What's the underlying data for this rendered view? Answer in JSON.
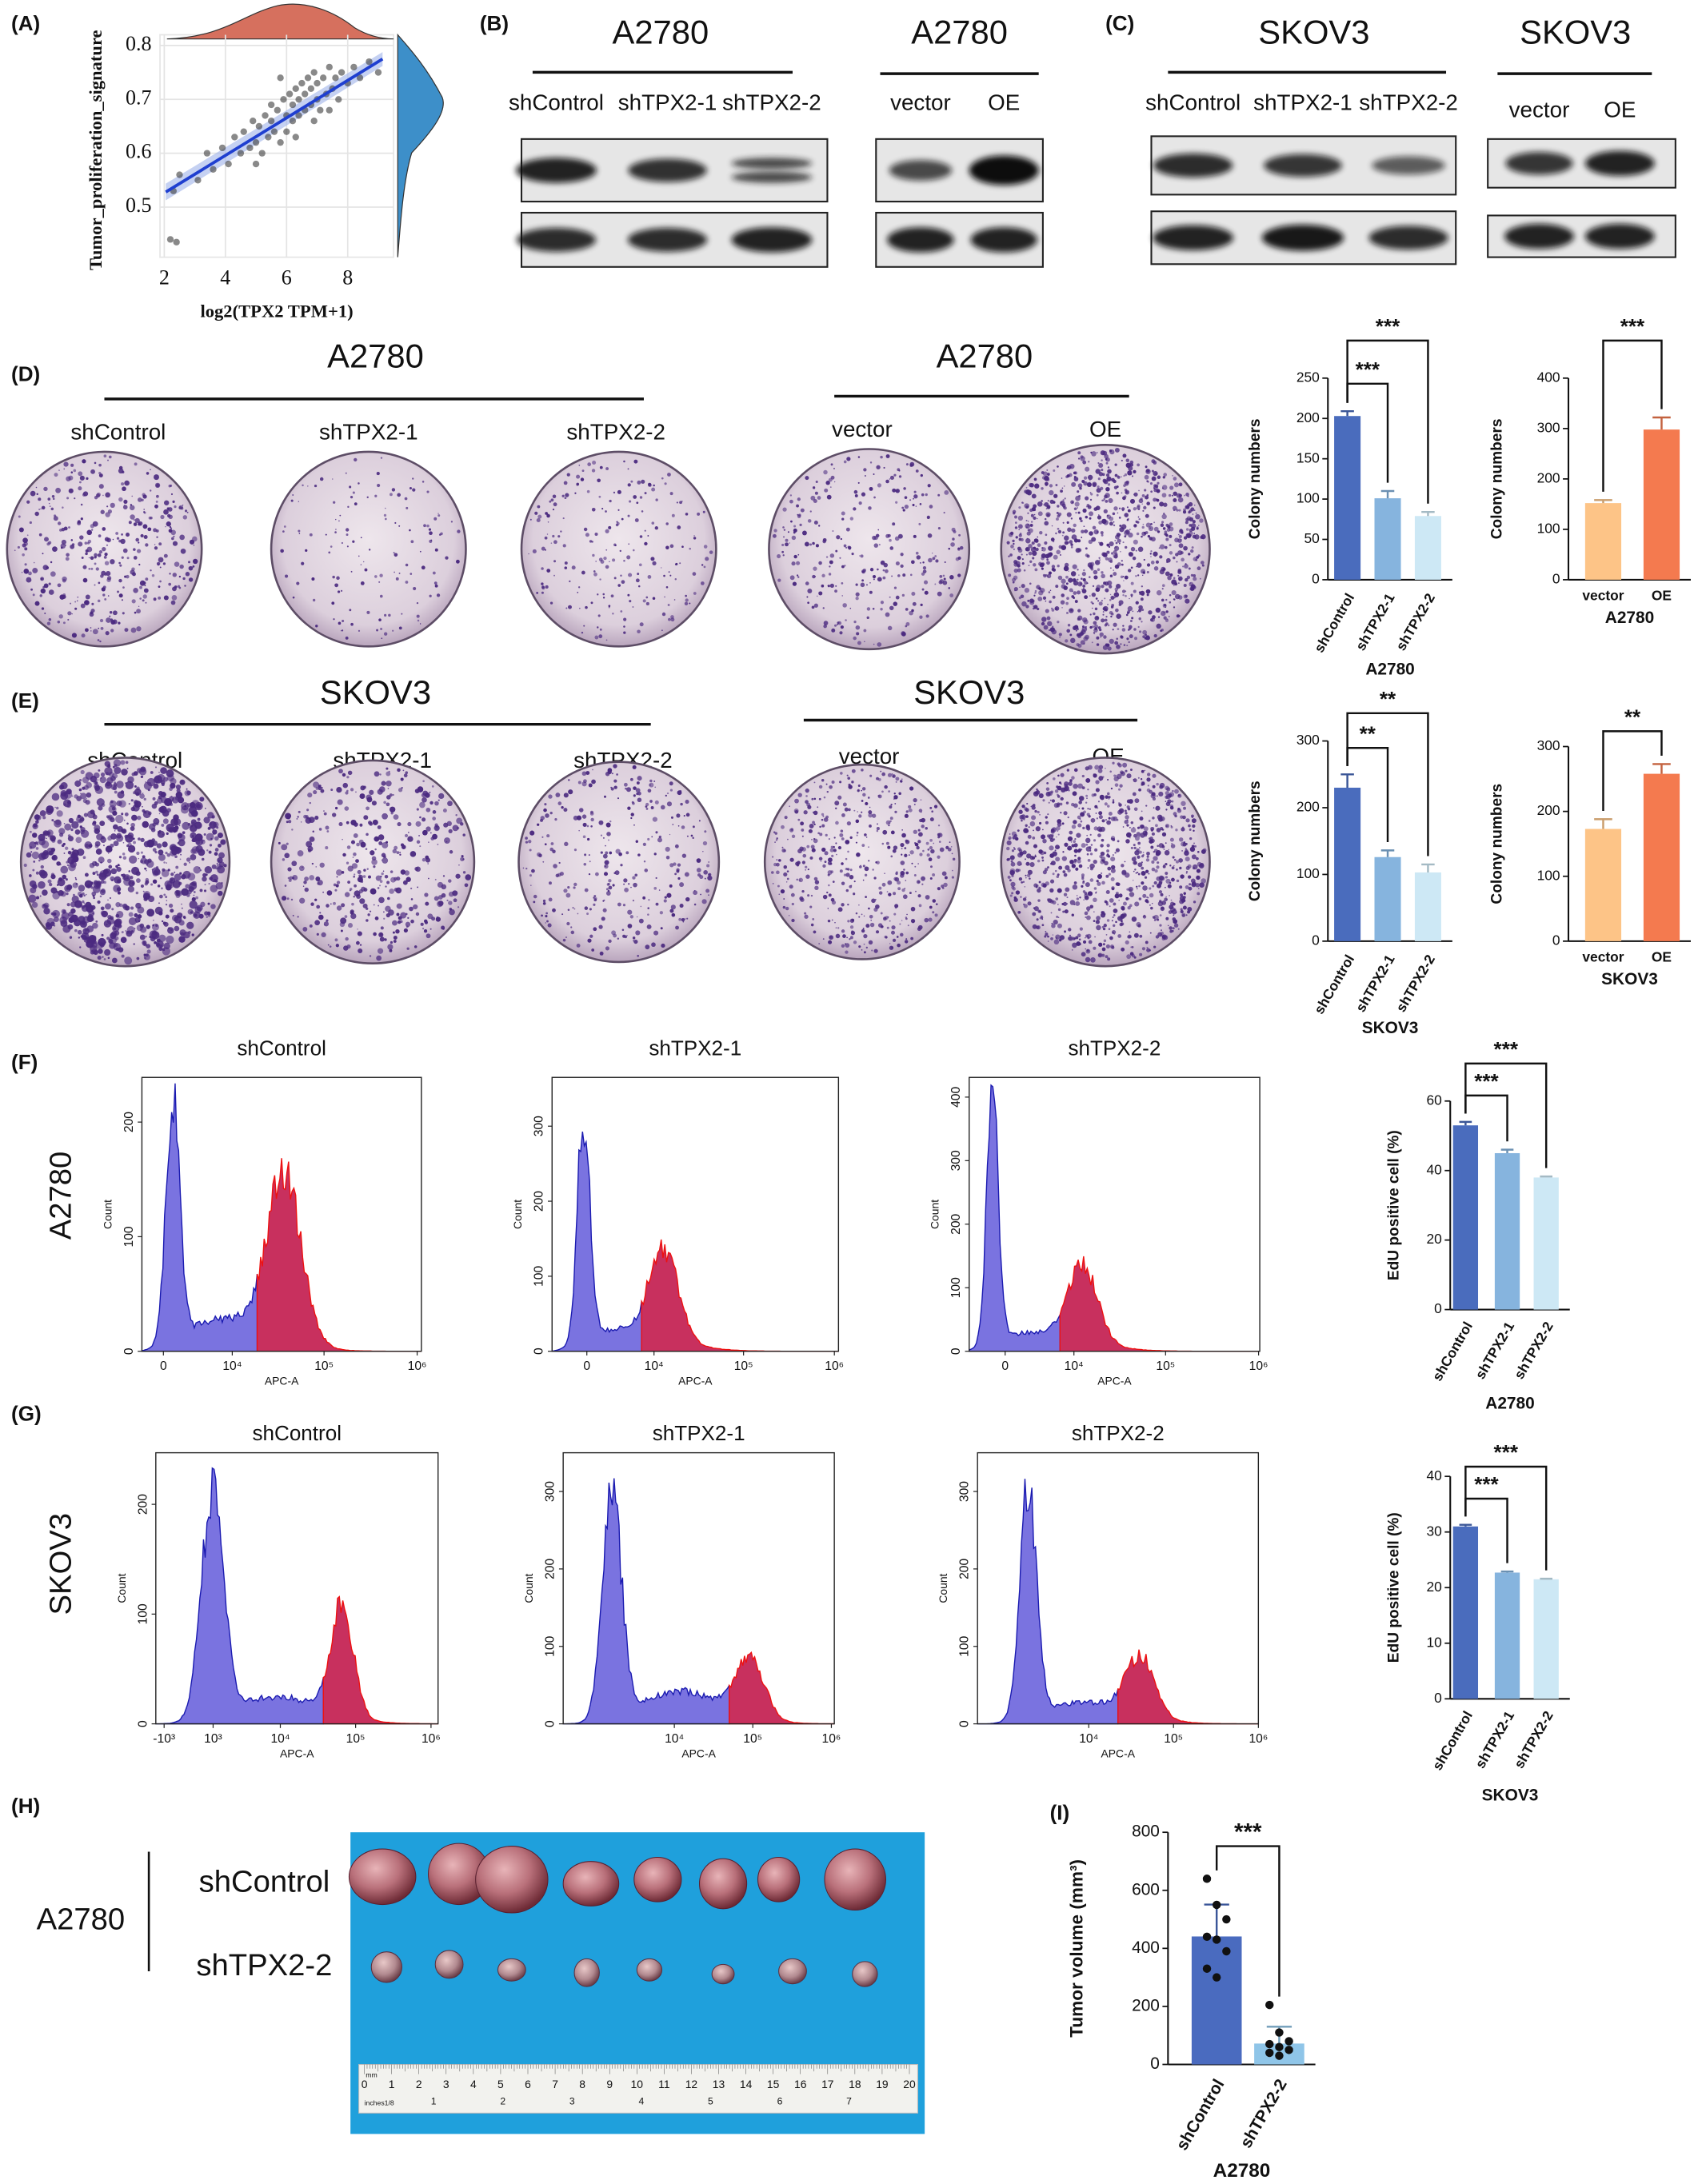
{
  "figure": {
    "labels": [
      "(A)",
      "(B)",
      "(C)",
      "(D)",
      "(E)",
      "(F)",
      "(G)",
      "(H)",
      "(I)"
    ],
    "blot_groups": [
      {
        "title": "A2780",
        "lanes": [
          "shControl",
          "shTPX2-1",
          "shTPX2-2"
        ]
      },
      {
        "title": "A2780",
        "lanes": [
          "vector",
          "OE"
        ]
      },
      {
        "title": "SKOV3",
        "lanes": [
          "shControl",
          "shTPX2-1",
          "shTPX2-2"
        ]
      },
      {
        "title": "SKOV3",
        "lanes": [
          "vector",
          "OE"
        ]
      }
    ],
    "plate_groups": [
      {
        "title": "A2780",
        "lanes": [
          "shControl",
          "shTPX2-1",
          "shTPX2-2"
        ]
      },
      {
        "title": "A2780",
        "lanes": [
          "vector",
          "OE"
        ]
      },
      {
        "title": "SKOV3",
        "lanes": [
          "shControl",
          "shTPX2-1",
          "shTPX2-2"
        ]
      },
      {
        "title": "SKOV3",
        "lanes": [
          "vector",
          "OE"
        ]
      }
    ],
    "flow_rows": [
      "A2780",
      "SKOV3"
    ],
    "xenograft": {
      "cell_line": "A2780",
      "groups": [
        "shControl",
        "shTPX2-2"
      ],
      "ruler": {
        "unit": "mm",
        "cm": [
          0,
          1,
          2,
          3,
          4,
          5,
          6,
          7,
          8,
          9,
          10,
          11,
          12,
          13,
          14,
          15,
          16,
          17,
          18,
          19,
          20
        ],
        "inch_label": "inches1/8",
        "inches": [
          1,
          2,
          3,
          4,
          5,
          6,
          7
        ]
      }
    }
  },
  "chart_data": [
    {
      "type": "scatter",
      "ylabel": "Tumor_proliferation_signature",
      "xlabel": "log2(TPX2 TPM+1)",
      "x": [
        2.3,
        2.5,
        3.1,
        3.4,
        3.6,
        3.9,
        4.1,
        4.3,
        4.5,
        4.6,
        4.8,
        4.9,
        5.0,
        5.1,
        5.2,
        5.3,
        5.4,
        5.5,
        5.5,
        5.6,
        5.7,
        5.8,
        5.9,
        6.0,
        6.0,
        6.1,
        6.2,
        6.2,
        6.3,
        6.4,
        6.4,
        6.5,
        6.6,
        6.6,
        6.7,
        6.8,
        6.8,
        6.9,
        7.0,
        7.0,
        7.1,
        7.2,
        7.3,
        7.4,
        7.5,
        7.6,
        7.7,
        7.8,
        8.0,
        8.2,
        8.4,
        8.7,
        9.0,
        5.0,
        5.8,
        6.3,
        6.9,
        7.4,
        2.2,
        2.4
      ],
      "y": [
        0.53,
        0.56,
        0.55,
        0.6,
        0.57,
        0.61,
        0.58,
        0.63,
        0.6,
        0.64,
        0.61,
        0.66,
        0.62,
        0.65,
        0.6,
        0.67,
        0.63,
        0.66,
        0.69,
        0.64,
        0.68,
        0.62,
        0.7,
        0.67,
        0.64,
        0.71,
        0.66,
        0.69,
        0.72,
        0.67,
        0.7,
        0.73,
        0.68,
        0.71,
        0.74,
        0.69,
        0.72,
        0.75,
        0.7,
        0.73,
        0.68,
        0.74,
        0.71,
        0.76,
        0.72,
        0.74,
        0.7,
        0.75,
        0.73,
        0.76,
        0.74,
        0.77,
        0.75,
        0.58,
        0.74,
        0.63,
        0.66,
        0.68,
        0.44,
        0.435
      ],
      "fit": {
        "x": [
          2.05,
          9.14
        ],
        "y": [
          0.528,
          0.775
        ]
      },
      "xlim": [
        1.86,
        9.5
      ],
      "ylim": [
        0.407,
        0.82
      ],
      "xticks": [
        2,
        4,
        6,
        8
      ],
      "yticks": [
        0.5,
        0.6,
        0.7,
        0.8
      ],
      "grid": true,
      "color": "#3a3a3a",
      "fit_color": "#1f3fd0"
    },
    {
      "type": "bar",
      "categories": [
        "shControl",
        "shTPX2-1",
        "shTPX2-2"
      ],
      "values": [
        203,
        101,
        79
      ],
      "errors": [
        6,
        9,
        5
      ],
      "colors": [
        "#4a6cbd",
        "#86b4de",
        "#cde8f5"
      ],
      "ylim": [
        0,
        250
      ],
      "yticks": [
        0,
        50,
        100,
        150,
        200,
        250
      ],
      "ylabel": "Colony numbers",
      "xlabel": "A2780",
      "annotations": [
        "***",
        "***"
      ]
    },
    {
      "type": "bar",
      "categories": [
        "vector",
        "OE"
      ],
      "values": [
        152,
        298
      ],
      "errors": [
        6,
        24
      ],
      "colors": [
        "#fdc487",
        "#f47a4f"
      ],
      "ylim": [
        0,
        400
      ],
      "yticks": [
        0,
        100,
        200,
        300,
        400
      ],
      "ylabel": "Colony numbers",
      "xlabel": "A2780",
      "annotations": [
        "***"
      ]
    },
    {
      "type": "bar",
      "categories": [
        "shControl",
        "shTPX2-1",
        "shTPX2-2"
      ],
      "values": [
        230,
        126,
        103
      ],
      "errors": [
        20,
        10,
        12
      ],
      "colors": [
        "#4a6cbd",
        "#86b4de",
        "#cde8f5"
      ],
      "ylim": [
        0,
        300
      ],
      "yticks": [
        0,
        100,
        200,
        300
      ],
      "ylabel": "Colony numbers",
      "xlabel": "SKOV3",
      "annotations": [
        "**",
        "**"
      ]
    },
    {
      "type": "bar",
      "categories": [
        "vector",
        "OE"
      ],
      "values": [
        173,
        258
      ],
      "errors": [
        15,
        15
      ],
      "colors": [
        "#fdc487",
        "#f47a4f"
      ],
      "ylim": [
        0,
        300
      ],
      "yticks": [
        0,
        100,
        200,
        300
      ],
      "ylabel": "Colony numbers",
      "xlabel": "SKOV3",
      "annotations": [
        "**"
      ]
    },
    {
      "type": "bar",
      "categories": [
        "shControl",
        "shTPX2-1",
        "shTPX2-2"
      ],
      "values": [
        53,
        45,
        38
      ],
      "errors": [
        1,
        1,
        0.3
      ],
      "colors": [
        "#4a6cbd",
        "#86b4de",
        "#cde8f5"
      ],
      "ylim": [
        0,
        60
      ],
      "yticks": [
        0,
        20,
        40,
        60
      ],
      "ylabel": "EdU positive cell (%)",
      "xlabel": "A2780",
      "annotations": [
        "***",
        "***"
      ]
    },
    {
      "type": "bar",
      "categories": [
        "shControl",
        "shTPX2-1",
        "shTPX2-2"
      ],
      "values": [
        31,
        22.7,
        21.5
      ],
      "errors": [
        0.3,
        0.2,
        0.1
      ],
      "colors": [
        "#4a6cbd",
        "#86b4de",
        "#cde8f5"
      ],
      "ylim": [
        0,
        40
      ],
      "yticks": [
        0,
        10,
        20,
        30,
        40
      ],
      "ylabel": "EdU positive cell (%)",
      "xlabel": "SKOV3",
      "annotations": [
        "***",
        "***"
      ]
    },
    {
      "type": "bar",
      "categories": [
        "shControl",
        "shTPX2-2"
      ],
      "values": [
        441,
        72
      ],
      "errors": [
        110,
        58
      ],
      "points": [
        [
          640,
          550,
          500,
          440,
          430,
          390,
          330,
          300
        ],
        [
          205,
          110,
          80,
          70,
          60,
          50,
          40,
          30
        ]
      ],
      "colors": [
        "#4a6bbf",
        "#8fc5e8"
      ],
      "ylim": [
        0,
        800
      ],
      "yticks": [
        0,
        200,
        400,
        600,
        800
      ],
      "ylabel": "Tumor volume (mm³)",
      "xlabel": "A2780",
      "annotations": [
        "***"
      ]
    },
    {
      "type": "flow",
      "title": "shControl",
      "ylabel": "Count",
      "xlabel": "APC-A",
      "xscale": "asinh",
      "ylim": [
        0,
        239
      ],
      "yticks": [
        0,
        100,
        200
      ],
      "xlim": [
        -2100,
        1110000
      ],
      "xticks": [
        {
          "value": 0,
          "label": "0"
        },
        {
          "value": 10000,
          "label": "10⁴"
        },
        {
          "value": 100000,
          "label": "10⁵"
        },
        {
          "value": 1000000,
          "label": "10⁶"
        }
      ]
    },
    {
      "type": "flow",
      "title": "shTPX2-1",
      "ylabel": "Count",
      "xlabel": "APC-A",
      "xscale": "asinh",
      "ylim": [
        0,
        365
      ],
      "yticks": [
        0,
        100,
        200,
        300
      ],
      "xlim": [
        -3770,
        1110000
      ],
      "xticks": [
        {
          "value": 0,
          "label": "0"
        },
        {
          "value": 10000,
          "label": "10⁴"
        },
        {
          "value": 100000,
          "label": "10⁵"
        },
        {
          "value": 1000000,
          "label": "10⁶"
        }
      ]
    },
    {
      "type": "flow",
      "title": "shTPX2-2",
      "ylabel": "Count",
      "xlabel": "APC-A",
      "xscale": "asinh",
      "ylim": [
        0,
        431
      ],
      "yticks": [
        0,
        100,
        200,
        300,
        400
      ],
      "xlim": [
        -3820,
        1030000
      ],
      "xticks": [
        {
          "value": 0,
          "label": "0"
        },
        {
          "value": 10000,
          "label": "10⁴"
        },
        {
          "value": 100000,
          "label": "10⁵"
        },
        {
          "value": 1000000,
          "label": "10⁶"
        }
      ]
    },
    {
      "type": "flow",
      "title": "shControl",
      "ylabel": "Count",
      "xlabel": "APC-A",
      "xscale": "asinh",
      "ylim": [
        0,
        247
      ],
      "yticks": [
        0,
        100,
        200
      ],
      "xlim": [
        -1437,
        1240000
      ],
      "xticks": [
        {
          "value": -1000,
          "label": "-10³"
        },
        {
          "value": 1000,
          "label": "10³"
        },
        {
          "value": 10000,
          "label": "10⁴"
        },
        {
          "value": 100000,
          "label": "10⁵"
        },
        {
          "value": 1000000,
          "label": "10⁶"
        }
      ]
    },
    {
      "type": "flow",
      "title": "shTPX2-1",
      "ylabel": "Count",
      "xlabel": "APC-A",
      "xscale": "asinh",
      "ylim": [
        0,
        350
      ],
      "yticks": [
        0,
        100,
        200,
        300
      ],
      "xlim": [
        -577,
        1090000
      ],
      "xticks": [
        {
          "value": 10000,
          "label": "10⁴"
        },
        {
          "value": 100000,
          "label": "10⁵"
        },
        {
          "value": 1000000,
          "label": "10⁶"
        }
      ]
    },
    {
      "type": "flow",
      "title": "shTPX2-2",
      "ylabel": "Count",
      "xlabel": "APC-A",
      "xscale": "asinh",
      "ylim": [
        0,
        350
      ],
      "yticks": [
        0,
        100,
        200,
        300
      ],
      "xlim": [
        -266,
        1000000
      ],
      "xticks": [
        {
          "value": 10000,
          "label": "10⁴"
        },
        {
          "value": 100000,
          "label": "10⁵"
        },
        {
          "value": 1000000,
          "label": "10⁶"
        }
      ]
    }
  ]
}
